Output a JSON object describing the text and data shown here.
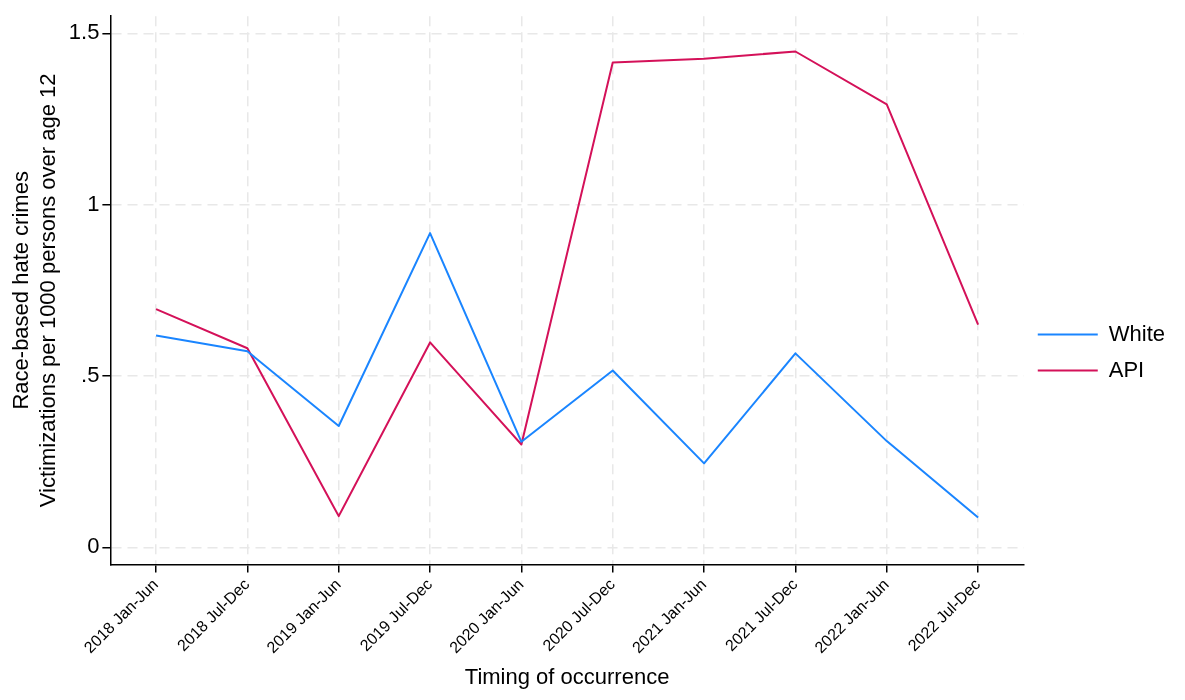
{
  "chart_data": {
    "type": "line",
    "xlabel": "Timing of occurrence",
    "ylabel": "Race-based hate crimes\nVictimizations per 1000 persons over age 12",
    "categories": [
      "2018 Jan-Jun",
      "2018 Jul-Dec",
      "2019 Jan-Jun",
      "2019 Jul-Dec",
      "2020 Jan-Jun",
      "2020 Jul-Dec",
      "2021 Jan-Jun",
      "2021 Jul-Dec",
      "2022 Jan-Jun",
      "2022 Jul-Dec"
    ],
    "series": [
      {
        "name": "White",
        "color": "#1a85ff",
        "values": [
          0.618,
          0.572,
          0.354,
          0.917,
          0.308,
          0.516,
          0.245,
          0.566,
          0.31,
          0.087
        ]
      },
      {
        "name": "API",
        "color": "#d41159",
        "values": [
          0.695,
          0.581,
          0.091,
          0.598,
          0.3,
          1.415,
          1.426,
          1.447,
          1.293,
          0.65
        ]
      }
    ],
    "ylim": [
      -0.05,
      1.55
    ],
    "yticks": [
      {
        "value": 0,
        "label": "0"
      },
      {
        "value": 0.5,
        "label": ".5"
      },
      {
        "value": 1,
        "label": "1"
      },
      {
        "value": 1.5,
        "label": "1.5"
      }
    ],
    "grid": true,
    "legend": "right",
    "marker": "none",
    "line_style": "solid"
  }
}
